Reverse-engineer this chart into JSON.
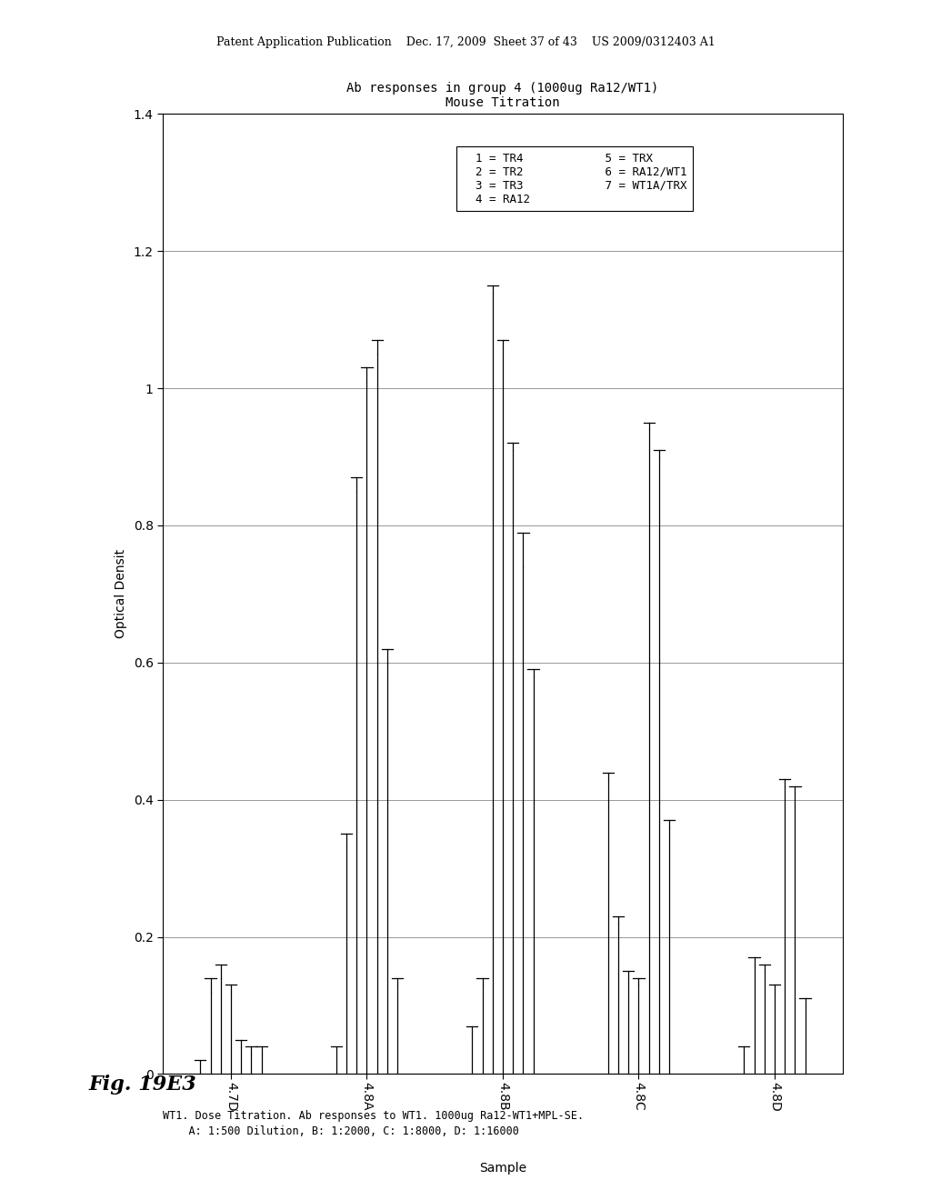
{
  "title_line1": "Ab responses in group 4 (1000ug Ra12/WT1)",
  "title_line2": "Mouse Titration",
  "ylabel": "Optical Densit",
  "xlabel": "Sample",
  "ylim": [
    0,
    1.4
  ],
  "yticks": [
    0,
    0.2,
    0.4,
    0.6,
    0.8,
    1.0,
    1.2,
    1.4
  ],
  "groups": [
    "4.7D",
    "4.8A",
    "4.8B",
    "4.8C",
    "4.8D"
  ],
  "caption_line1": "WT1. Dose Titration. Ab responses to WT1. 1000ug Ra12-WT1+MPL-SE.",
  "caption_line2": "    A: 1:500 Dilution, B: 1:2000, C: 1:8000, D: 1:16000",
  "bar_values": {
    "4.7D": [
      0.02,
      0.12,
      0.14,
      0.12,
      0.04,
      0.03,
      0.03
    ],
    "4.8A": [
      0.04,
      0.33,
      0.85,
      1.01,
      1.05,
      0.6,
      0.13
    ],
    "4.8B": [
      0.06,
      0.13,
      1.14,
      1.06,
      0.91,
      0.74,
      0.58
    ],
    "4.8C": [
      0.43,
      0.22,
      0.14,
      0.13,
      0.94,
      0.9,
      0.36
    ],
    "4.8D": [
      0.03,
      0.16,
      0.15,
      0.12,
      0.42,
      0.41,
      0.1
    ]
  },
  "error_cap_values": {
    "4.7D": [
      0.02,
      0.14,
      0.16,
      0.13,
      0.05,
      0.04,
      0.04
    ],
    "4.8A": [
      0.04,
      0.35,
      0.87,
      1.03,
      1.07,
      0.62,
      0.14
    ],
    "4.8B": [
      0.07,
      0.14,
      1.15,
      1.07,
      0.92,
      0.79,
      0.59
    ],
    "4.8C": [
      0.44,
      0.23,
      0.15,
      0.14,
      0.95,
      0.91,
      0.37
    ],
    "4.8D": [
      0.04,
      0.17,
      0.16,
      0.13,
      0.43,
      0.42,
      0.11
    ]
  },
  "bar_color": "#000000",
  "background_color": "#ffffff",
  "fig_header": "Patent Application Publication    Dec. 17, 2009  Sheet 37 of 43    US 2009/0312403 A1",
  "fig_label": "Fig. 19E3"
}
